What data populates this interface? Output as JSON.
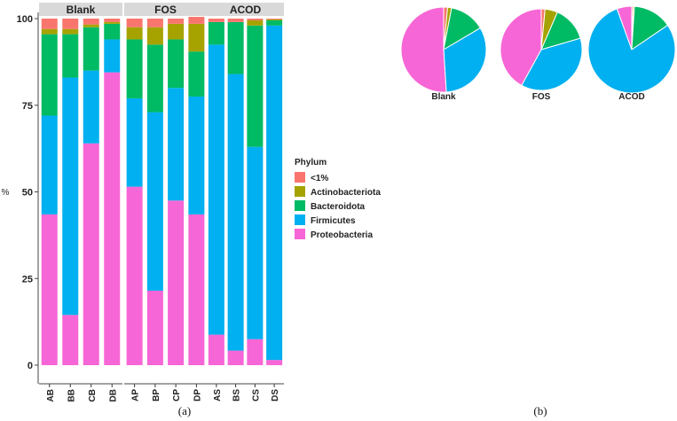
{
  "chart_data": [
    {
      "type": "bar",
      "stacked": true,
      "panel_label": "(a)",
      "ylabel": "%",
      "ylim": [
        0,
        100
      ],
      "yticks": [
        0,
        25,
        50,
        75,
        100
      ],
      "groups": [
        {
          "name": "Blank",
          "categories": [
            "AB",
            "BB",
            "CB",
            "DB"
          ]
        },
        {
          "name": "FOS",
          "categories": [
            "AP",
            "BP",
            "CP",
            "DP"
          ]
        },
        {
          "name": "ACOD",
          "categories": [
            "AS",
            "BS",
            "CS",
            "DS"
          ]
        }
      ],
      "legend": {
        "title": "Phylum",
        "placement": "right"
      },
      "series": [
        {
          "name": "Proteobacteria",
          "color": "#F766D6",
          "values": [
            43.5,
            14.5,
            64.0,
            84.5,
            51.5,
            21.5,
            47.5,
            43.5,
            8.8,
            4.2,
            7.5,
            1.5
          ]
        },
        {
          "name": "Firmicutes",
          "color": "#00B0F0",
          "values": [
            28.5,
            68.5,
            21.0,
            9.5,
            25.5,
            51.5,
            32.5,
            34.0,
            83.7,
            79.8,
            55.5,
            96.5
          ]
        },
        {
          "name": "Bacteroidota",
          "color": "#00BA64",
          "values": [
            23.5,
            12.5,
            12.5,
            4.5,
            17.0,
            19.5,
            14.0,
            13.0,
            6.5,
            15.0,
            35.0,
            1.5
          ]
        },
        {
          "name": "Actinobacteriota",
          "color": "#A6A300",
          "values": [
            1.5,
            1.5,
            0.8,
            0.5,
            3.5,
            5.0,
            4.5,
            8.0,
            0.0,
            0.0,
            1.5,
            0.3
          ]
        },
        {
          "name": "<1%",
          "color": "#F8766D",
          "values": [
            3.0,
            3.0,
            1.7,
            1.0,
            2.5,
            2.5,
            1.5,
            2.0,
            1.0,
            1.0,
            0.5,
            0.2
          ]
        }
      ]
    },
    {
      "type": "pie",
      "panel_label": "(b)",
      "pies": [
        {
          "name": "Blank",
          "slices": [
            {
              "series": "<1%",
              "value": 1.5,
              "color": "#F8766D"
            },
            {
              "series": "Actinobacteriota",
              "value": 1.5,
              "color": "#A6A300"
            },
            {
              "series": "Bacteroidota",
              "value": 13.5,
              "color": "#00BA64"
            },
            {
              "series": "Firmicutes",
              "value": 32.5,
              "color": "#00B0F0"
            },
            {
              "series": "Proteobacteria",
              "value": 51.0,
              "color": "#F766D6"
            }
          ]
        },
        {
          "name": "FOS",
          "slices": [
            {
              "series": "<1%",
              "value": 1.5,
              "color": "#F8766D"
            },
            {
              "series": "Actinobacteriota",
              "value": 5.0,
              "color": "#A6A300"
            },
            {
              "series": "Bacteroidota",
              "value": 14.0,
              "color": "#00BA64"
            },
            {
              "series": "Firmicutes",
              "value": 37.5,
              "color": "#00B0F0"
            },
            {
              "series": "Proteobacteria",
              "value": 42.0,
              "color": "#F766D6"
            }
          ]
        },
        {
          "name": "ACOD",
          "slices": [
            {
              "series": "<1%",
              "value": 0.5,
              "color": "#F8766D"
            },
            {
              "series": "Actinobacteriota",
              "value": 0.5,
              "color": "#A6A300"
            },
            {
              "series": "Bacteroidota",
              "value": 14.5,
              "color": "#00BA64"
            },
            {
              "series": "Firmicutes",
              "value": 79.0,
              "color": "#00B0F0"
            },
            {
              "series": "Proteobacteria",
              "value": 5.5,
              "color": "#F766D6"
            }
          ]
        }
      ]
    }
  ]
}
